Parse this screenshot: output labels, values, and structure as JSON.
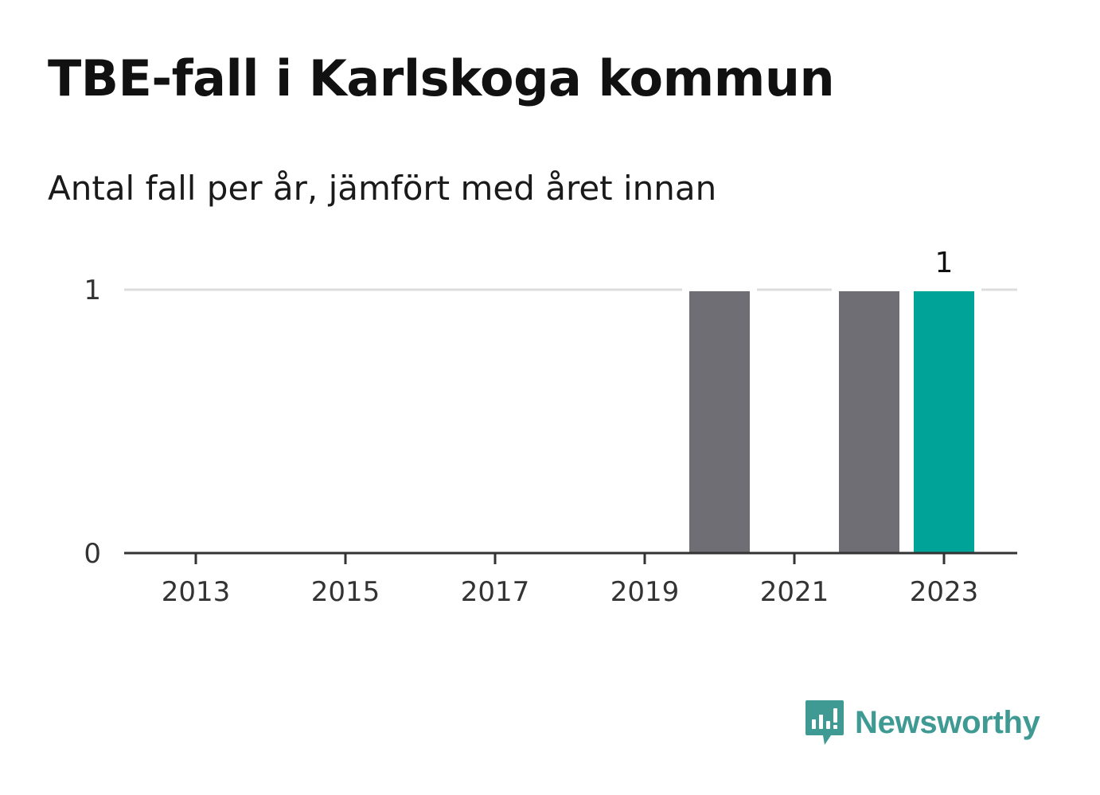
{
  "header": {
    "title": "TBE-fall i Karlskoga kommun",
    "subtitle": "Antal fall per år, jämfört med året innan"
  },
  "brand": {
    "name": "Newsworthy",
    "color": "#3e9a93",
    "icon": "newsworthy-logo-icon"
  },
  "colors": {
    "bar_default": "#6f6e75",
    "bar_highlight": "#00a398",
    "grid": "#dddddd",
    "axis": "#333333"
  },
  "chart_data": {
    "type": "bar",
    "title": "TBE-fall i Karlskoga kommun",
    "subtitle": "Antal fall per år, jämfört med året innan",
    "xlabel": "",
    "ylabel": "",
    "categories": [
      "2013",
      "2014",
      "2015",
      "2016",
      "2017",
      "2018",
      "2019",
      "2020",
      "2021",
      "2022",
      "2023"
    ],
    "values": [
      0,
      0,
      0,
      0,
      0,
      0,
      0,
      1,
      0,
      1,
      1
    ],
    "highlight": [
      false,
      false,
      false,
      false,
      false,
      false,
      false,
      false,
      false,
      false,
      true
    ],
    "x_tick_labels": [
      "2013",
      "2015",
      "2017",
      "2019",
      "2021",
      "2023"
    ],
    "y_ticks": [
      0,
      1
    ],
    "y_tick_labels": [
      "0",
      "1"
    ],
    "ylim": [
      0,
      1
    ],
    "grid": true,
    "value_labels": [
      {
        "category": "2023",
        "text": "1"
      }
    ]
  }
}
